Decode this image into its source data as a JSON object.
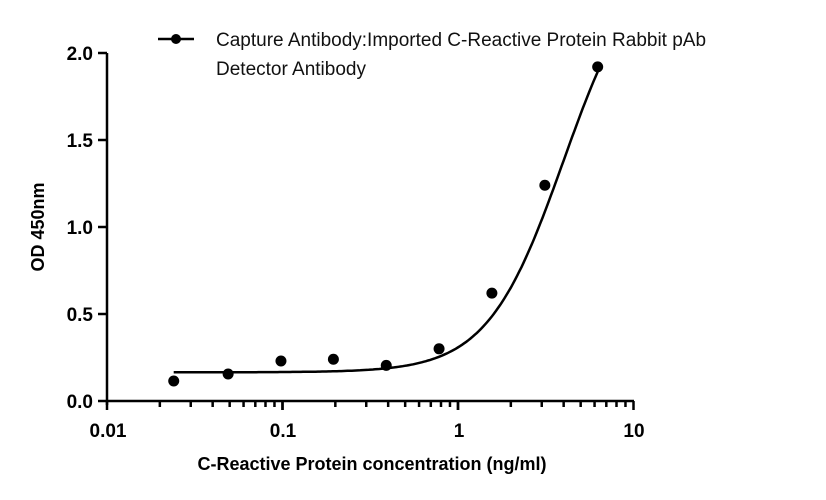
{
  "chart_data": {
    "type": "scatter",
    "title": "",
    "xlabel": "C-Reactive Protein concentration (ng/ml)",
    "ylabel": "OD 450nm",
    "xscale": "log",
    "xlim": [
      0.01,
      10
    ],
    "ylim": [
      0,
      2.0
    ],
    "x_ticks": [
      "0.01",
      "0.1",
      "1",
      "10"
    ],
    "y_ticks": [
      "0.0",
      "0.5",
      "1.0",
      "1.5",
      "2.0"
    ],
    "grid": false,
    "legend_position": "top",
    "legend": [
      "Capture Antibody:Imported C-Reactive Protein Rabbit pAb",
      "Detector Antibody"
    ],
    "series": [
      {
        "name": "Capture Antibody:Imported C-Reactive Protein Rabbit pAb Detector Antibody",
        "x": [
          0.024,
          0.049,
          0.098,
          0.195,
          0.39,
          0.78,
          1.56,
          3.125,
          6.25
        ],
        "y": [
          0.115,
          0.155,
          0.23,
          0.24,
          0.205,
          0.3,
          0.62,
          1.24,
          1.92
        ],
        "marker": "filled-circle",
        "color": "#000000",
        "fit": "four-parameter logistic curve"
      }
    ]
  }
}
